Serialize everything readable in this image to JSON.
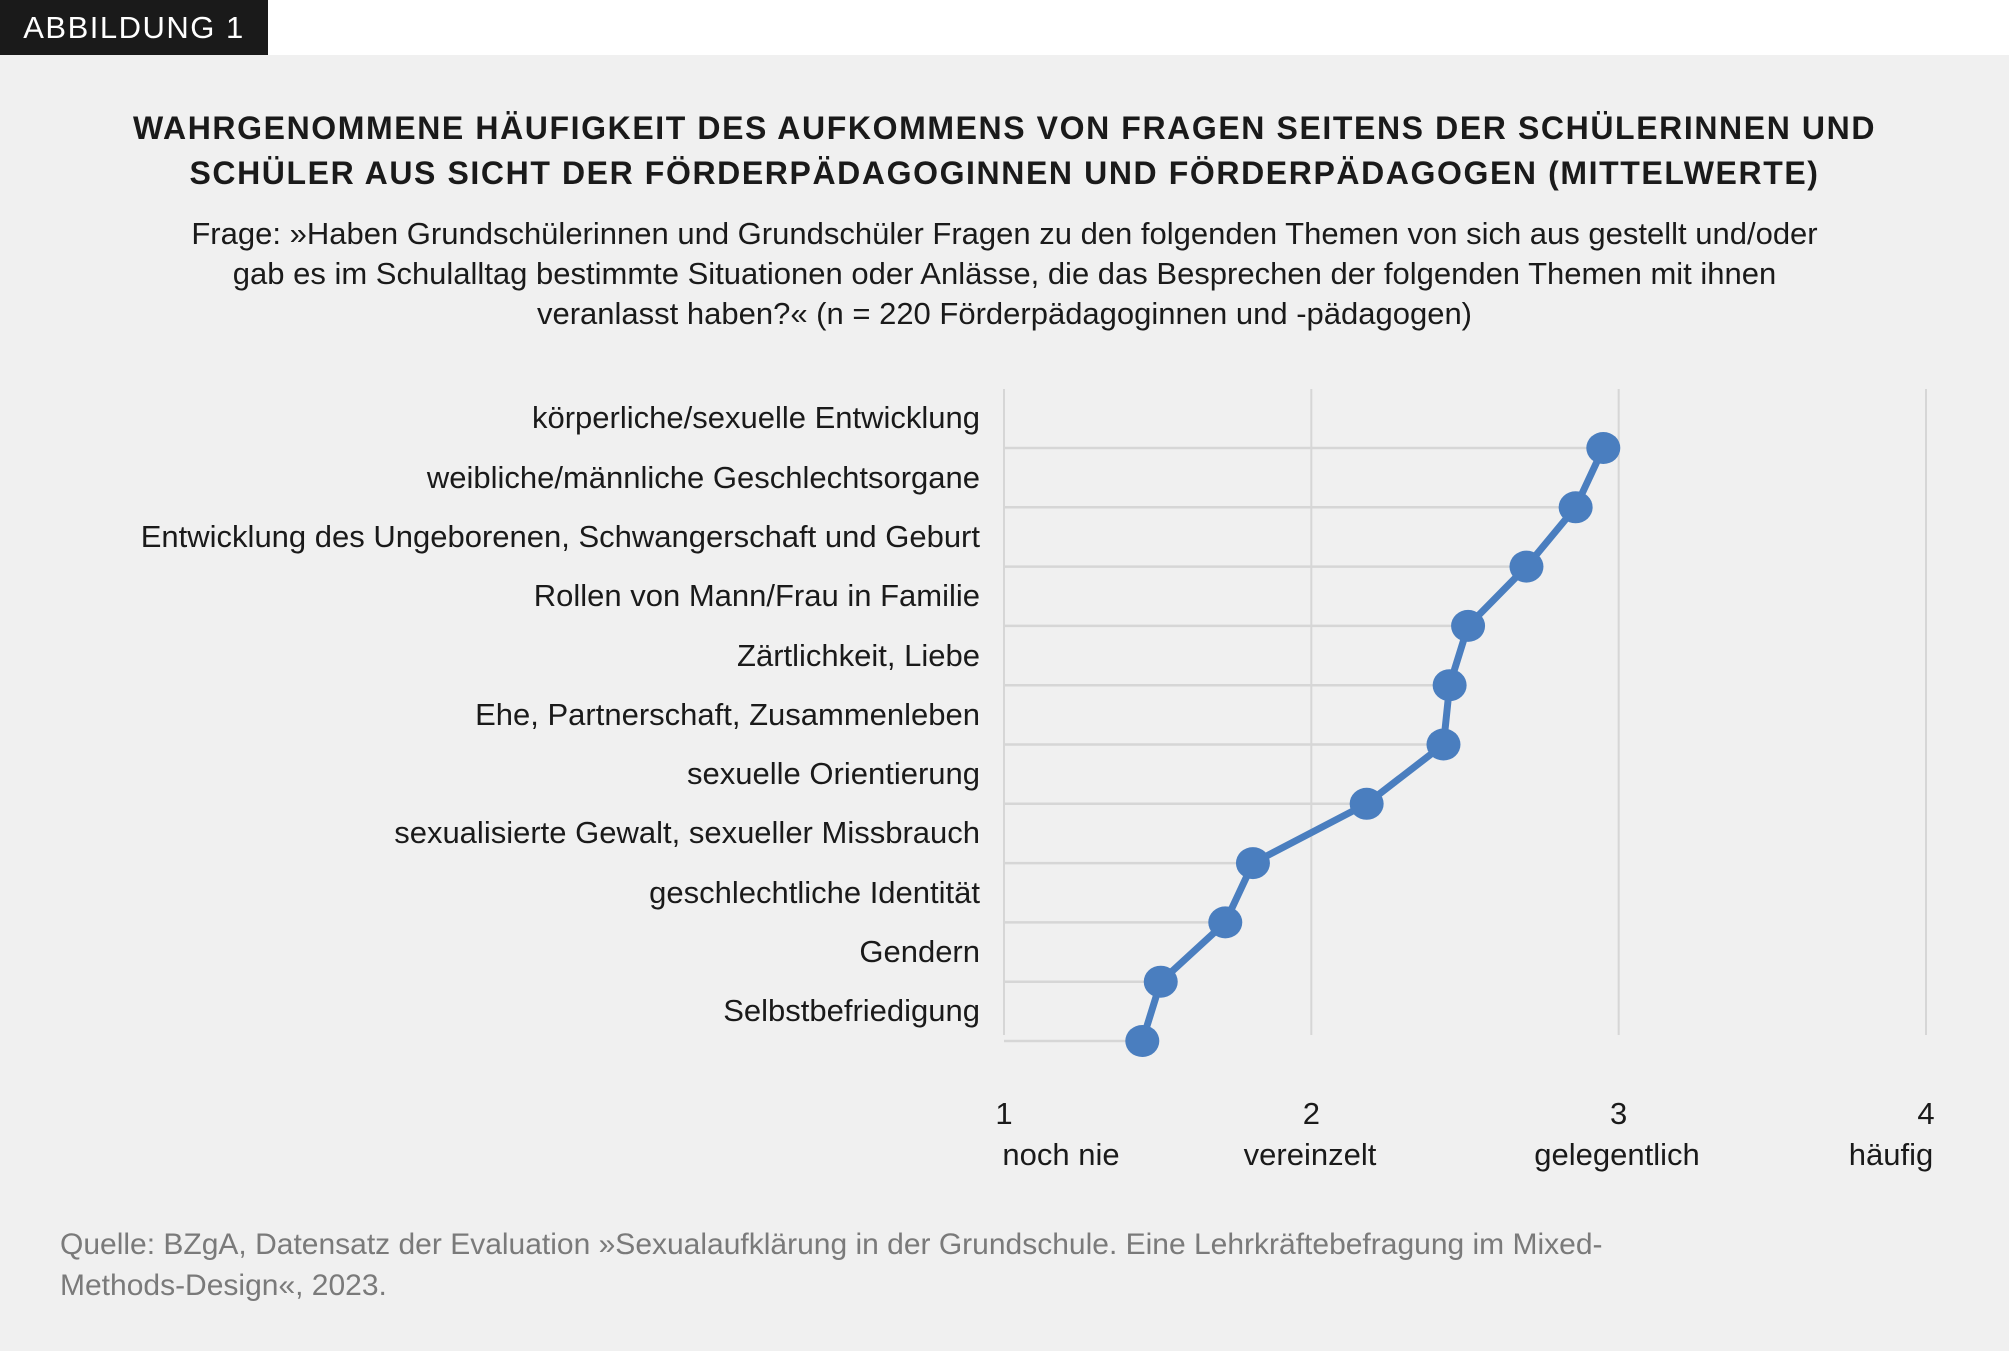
{
  "tag": "ABBILDUNG 1",
  "title_lines": [
    "WAHRGENOMMENE HÄUFIGKEIT DES AUFKOMMENS VON FRAGEN SEITENS DER SCHÜLERINNEN UND",
    "SCHÜLER AUS SICHT DER FÖRDERPÄDAGOGINNEN UND FÖRDERPÄDAGOGEN (MITTELWERTE)"
  ],
  "subtitle_lines": [
    "Frage: »Haben Grundschülerinnen und Grundschüler Fragen zu den folgenden Themen von sich aus gestellt und/oder",
    "gab es im Schulalltag bestimmte Situationen oder Anlässe, die das Besprechen der folgenden Themen mit ihnen",
    "veranlasst haben?« (n = 220 Förderpädagoginnen und -pädagogen)"
  ],
  "source_lines": [
    "Quelle: BZgA, Datensatz der Evaluation »Sexualaufklärung in der Grundschule. Eine Lehrkräftebefragung im Mixed-",
    "Methods-Design«, 2023."
  ],
  "chart_data": {
    "type": "line",
    "orientation": "horizontal",
    "categories": [
      "körperliche/sexuelle Entwicklung",
      "weibliche/männliche Geschlechtsorgane",
      "Entwicklung des Ungeborenen, Schwangerschaft und Geburt",
      "Rollen von Mann/Frau in Familie",
      "Zärtlichkeit, Liebe",
      "Ehe, Partnerschaft, Zusammenleben",
      "sexuelle Orientierung",
      "sexualisierte Gewalt, sexueller Missbrauch",
      "geschlechtliche Identität",
      "Gendern",
      "Selbstbefriedigung"
    ],
    "values": [
      2.95,
      2.86,
      2.7,
      2.51,
      2.45,
      2.43,
      2.18,
      1.81,
      1.72,
      1.51,
      1.45
    ],
    "xlim": [
      1,
      4
    ],
    "xticks": [
      1,
      2,
      3,
      4
    ],
    "xtick_labels": [
      "noch nie",
      "vereinzelt",
      "gelegentlich",
      "häufig"
    ],
    "grid": true,
    "color": "#4a7ebf",
    "gridcolor": "#d6d6d6"
  }
}
